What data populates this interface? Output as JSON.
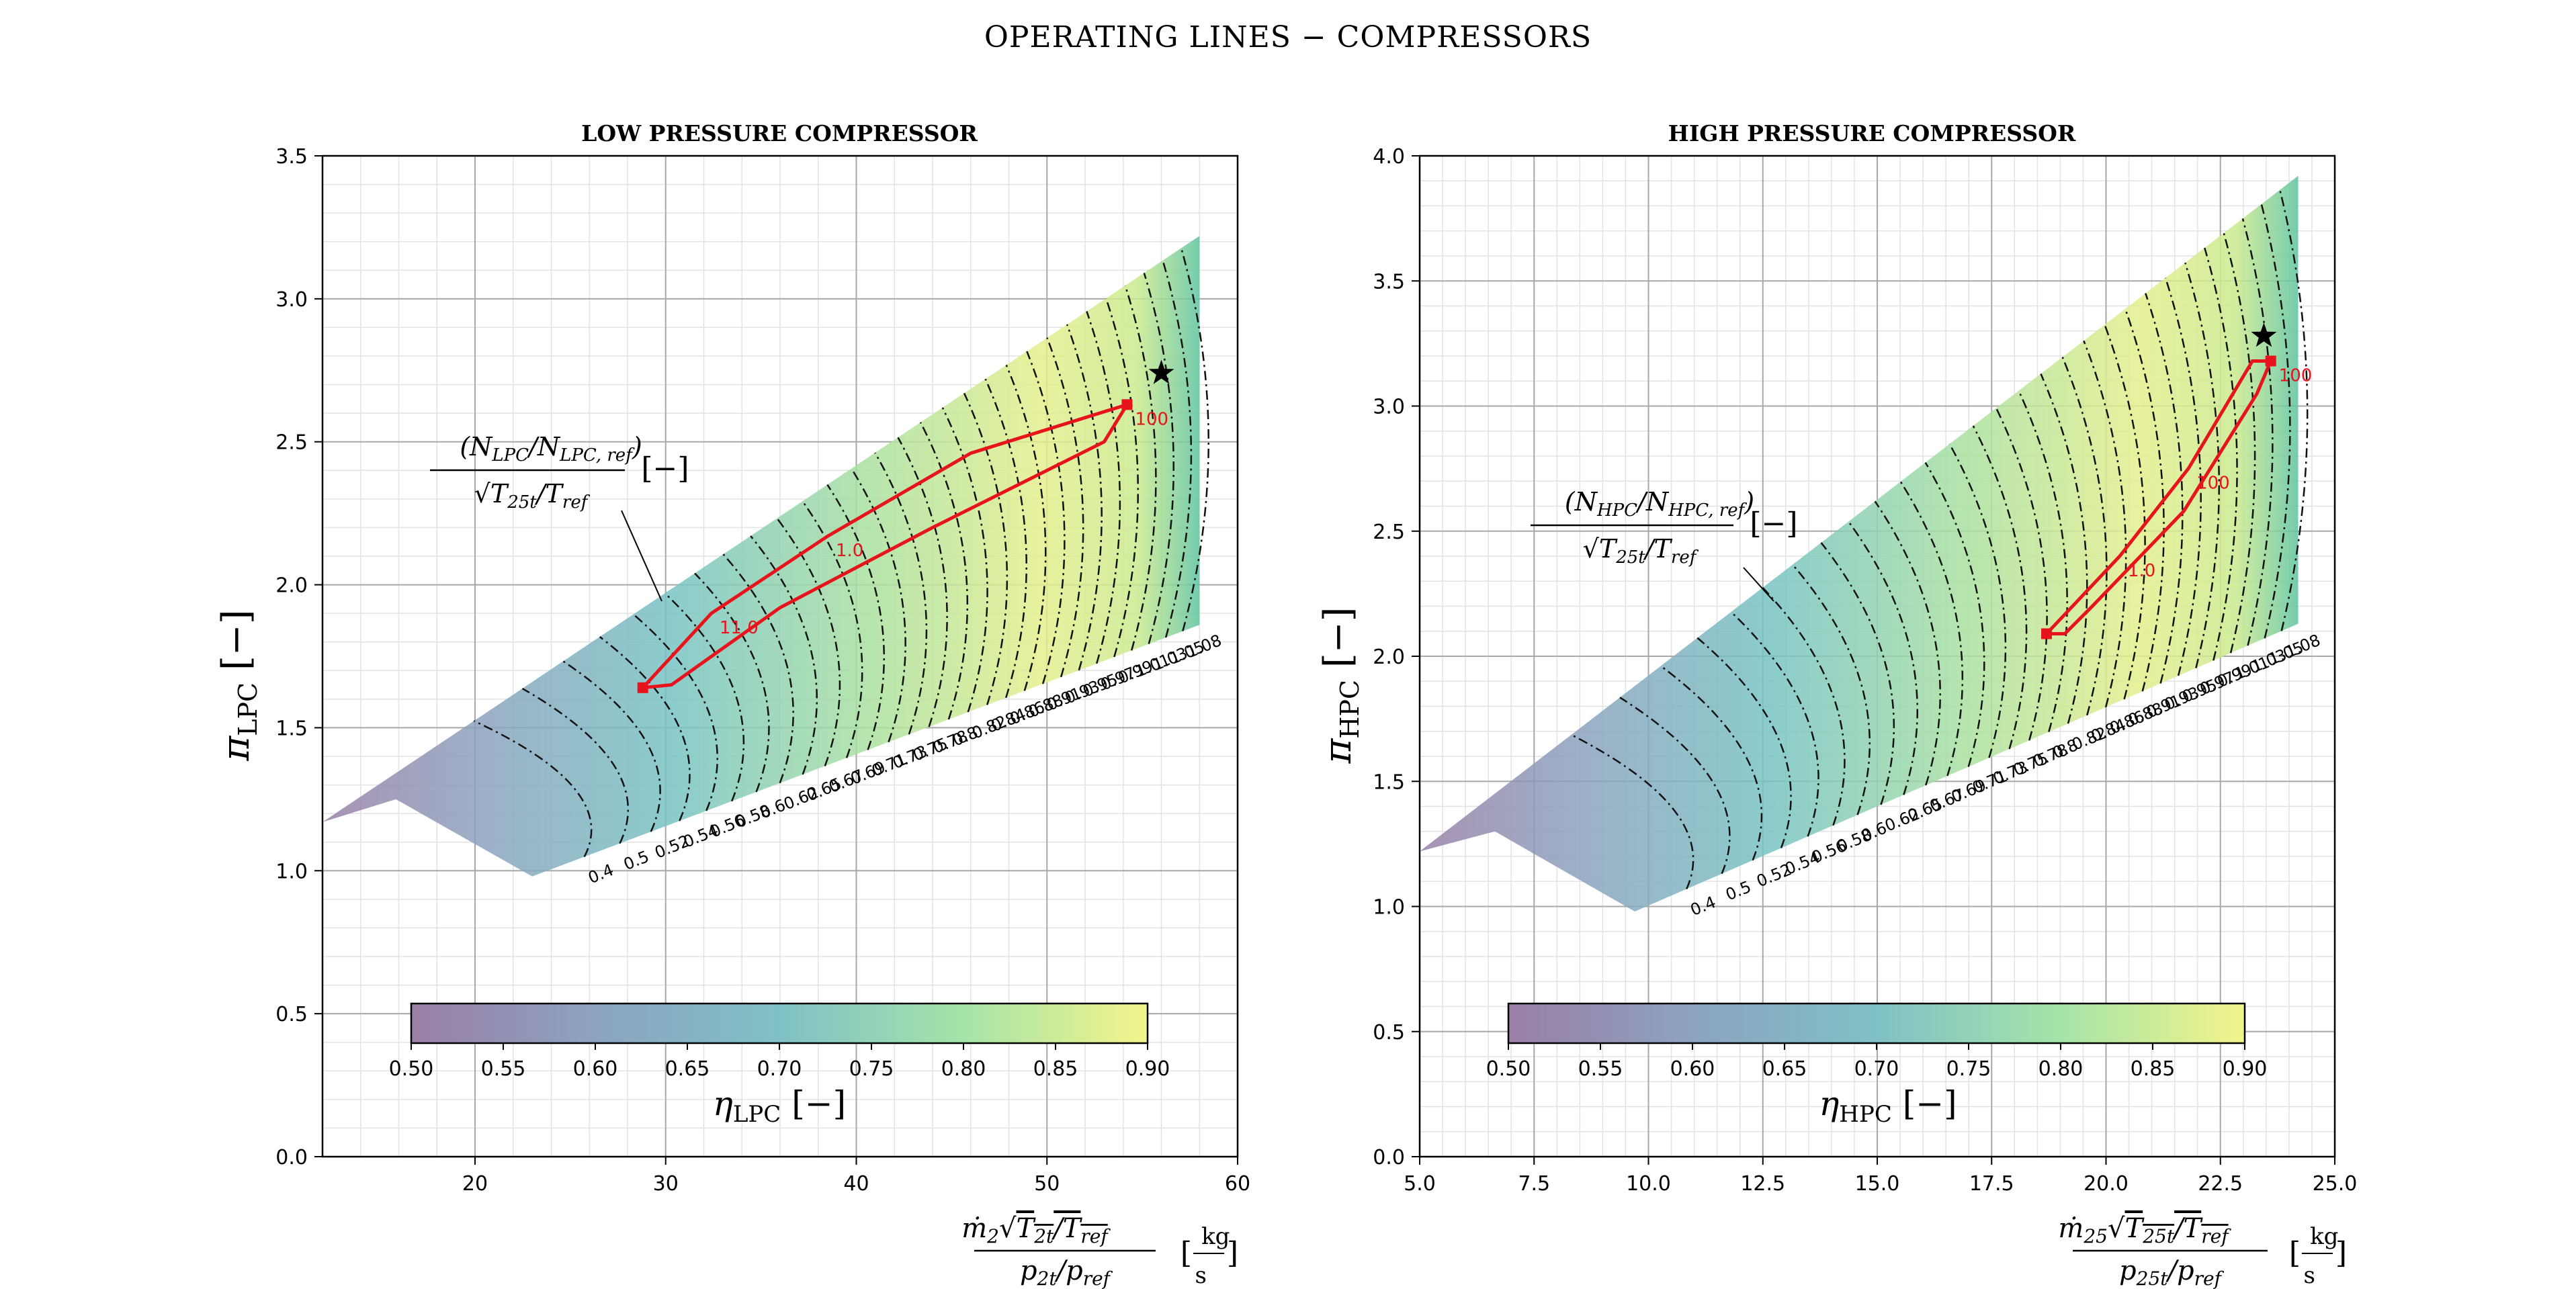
{
  "figure": {
    "suptitle": "OPERATING LINES − COMPRESSORS"
  },
  "chart_data": [
    {
      "id": "lpc",
      "type": "contour",
      "title": "LOW PRESSURE COMPRESSOR",
      "ylabel": "πLPC [−]",
      "xlabel": "ṅ2√(T2t/Tref) / (p2t/pref) [kg/s]",
      "xlim": [
        12,
        60
      ],
      "ylim": [
        0.0,
        3.5
      ],
      "xticks": [
        "20",
        "30",
        "40",
        "50",
        "60"
      ],
      "yticks": [
        "0.0",
        "0.5",
        "1.0",
        "1.5",
        "2.0",
        "2.5",
        "3.0",
        "3.5"
      ],
      "grid": true,
      "map": {
        "mass_flow_range": [
          12.0,
          58.0
        ],
        "pi_range": [
          1.17,
          3.22
        ],
        "efficiency_range": [
          0.5,
          0.9
        ]
      },
      "speed_lines": [
        "0.4",
        "0.5",
        "0.52",
        "0.54",
        "0.56",
        "0.58",
        "0.6",
        "0.62",
        "0.65",
        "0.67",
        "0.69",
        "0.71",
        "0.73",
        "0.75",
        "0.78",
        "0.8",
        "0.82",
        "0.84",
        "0.86",
        "0.88",
        "0.91",
        "0.93",
        "0.95",
        "0.97",
        "0.99",
        "1.01",
        "1.03",
        "1.05",
        "1.08"
      ],
      "speed_annotation": "(NLPC/NLPC,ref) / √(T25t/Tref) [−]",
      "operating_line": {
        "labels": [
          "11.0",
          "1.0",
          "100"
        ],
        "points": [
          [
            28.8,
            1.64
          ],
          [
            32.4,
            1.9
          ],
          [
            38.5,
            2.17
          ],
          [
            46.0,
            2.46
          ],
          [
            54.2,
            2.63
          ],
          [
            53.0,
            2.5
          ],
          [
            44.0,
            2.2
          ],
          [
            36.0,
            1.92
          ],
          [
            30.3,
            1.65
          ],
          [
            28.8,
            1.64
          ]
        ]
      },
      "design_point": {
        "x": 56.0,
        "y": 2.74
      },
      "colorbar": {
        "label": "ηLPC [−]",
        "ticks": [
          "0.50",
          "0.55",
          "0.60",
          "0.65",
          "0.70",
          "0.75",
          "0.80",
          "0.85",
          "0.90"
        ]
      }
    },
    {
      "id": "hpc",
      "type": "contour",
      "title": "HIGH PRESSURE COMPRESSOR",
      "ylabel": "πHPC [−]",
      "xlabel": "ṅ25√(T25t/Tref) / (p25t/pref) [kg/s]",
      "xlim": [
        5.0,
        25.0
      ],
      "ylim": [
        0.0,
        4.0
      ],
      "xticks": [
        "5.0",
        "7.5",
        "10.0",
        "12.5",
        "15.0",
        "17.5",
        "20.0",
        "22.5",
        "25.0"
      ],
      "yticks": [
        "0.0",
        "0.5",
        "1.0",
        "1.5",
        "2.0",
        "2.5",
        "3.0",
        "3.5",
        "4.0"
      ],
      "grid": true,
      "map": {
        "mass_flow_range": [
          5.0,
          24.2
        ],
        "pi_range": [
          1.22,
          3.92
        ],
        "efficiency_range": [
          0.5,
          0.9
        ]
      },
      "speed_lines": [
        "0.4",
        "0.5",
        "0.52",
        "0.54",
        "0.56",
        "0.58",
        "0.6",
        "0.62",
        "0.65",
        "0.67",
        "0.69",
        "0.71",
        "0.73",
        "0.75",
        "0.78",
        "0.8",
        "0.82",
        "0.84",
        "0.86",
        "0.88",
        "0.91",
        "0.93",
        "0.95",
        "0.97",
        "0.99",
        "1.01",
        "1.03",
        "1.05",
        "1.08"
      ],
      "speed_annotation": "(NHPC/NHPC,ref) / √(T25t/Tref) [−]",
      "operating_line": {
        "labels": [
          "1.0",
          "100",
          "100"
        ],
        "points": [
          [
            18.7,
            2.09
          ],
          [
            20.3,
            2.4
          ],
          [
            21.8,
            2.75
          ],
          [
            23.2,
            3.18
          ],
          [
            23.6,
            3.18
          ],
          [
            23.3,
            3.05
          ],
          [
            21.7,
            2.58
          ],
          [
            19.7,
            2.2
          ],
          [
            19.1,
            2.09
          ],
          [
            18.7,
            2.09
          ]
        ]
      },
      "design_point": {
        "x": 23.45,
        "y": 3.28
      },
      "colorbar": {
        "label": "ηHPC [−]",
        "ticks": [
          "0.50",
          "0.55",
          "0.60",
          "0.65",
          "0.70",
          "0.75",
          "0.80",
          "0.85",
          "0.90"
        ]
      }
    }
  ]
}
